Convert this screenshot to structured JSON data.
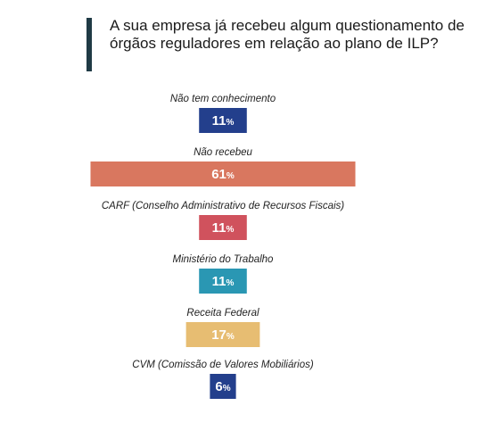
{
  "chart_data": {
    "type": "bar",
    "title": "A sua empresa já recebeu algum questionamento de órgãos reguladores em relação ao plano de ILP?",
    "categories": [
      "Não tem conhecimento",
      "Não recebeu",
      "CARF (Conselho Administrativo de Recursos Fiscais)",
      "Ministério do Trabalho",
      "Receita Federal",
      "CVM (Comissão de Valores Mobiliários)"
    ],
    "values": [
      11,
      61,
      11,
      11,
      17,
      6
    ],
    "value_suffix": "%",
    "colors": [
      "#233f8c",
      "#d9775f",
      "#d0525d",
      "#2a97b3",
      "#e7bd72",
      "#233f8c"
    ],
    "orientation": "horizontal-centered",
    "grid": false,
    "legend": "none"
  },
  "title_color_accent": "#1f3a45"
}
